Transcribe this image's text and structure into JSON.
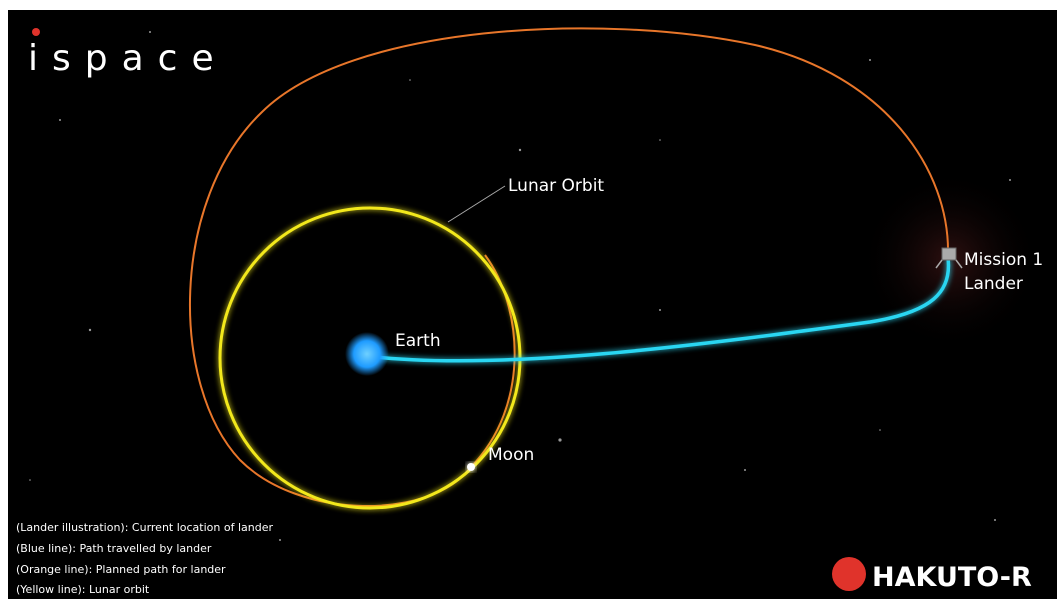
{
  "logo": "ispace",
  "labels": {
    "lunar_orbit": "Lunar Orbit",
    "earth": "Earth",
    "moon": "Moon",
    "lander_line1": "Mission 1",
    "lander_line2": "Lander"
  },
  "legend": [
    "(Lander illustration): Current location of lander",
    "(Blue line): Path travelled by lander",
    "(Orange line): Planned path for lander",
    "(Yellow line): Lunar orbit"
  ],
  "brand": "HAKUTO-R"
}
